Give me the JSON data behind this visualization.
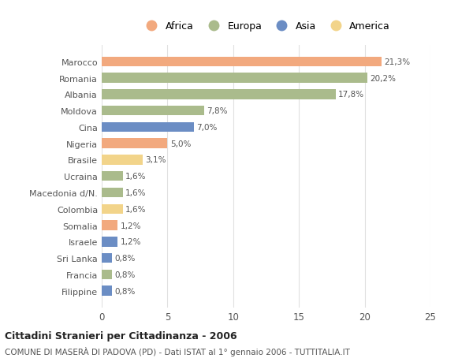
{
  "categories": [
    "Marocco",
    "Romania",
    "Albania",
    "Moldova",
    "Cina",
    "Nigeria",
    "Brasile",
    "Ucraina",
    "Macedonia d/N.",
    "Colombia",
    "Somalia",
    "Israele",
    "Sri Lanka",
    "Francia",
    "Filippine"
  ],
  "values": [
    21.3,
    20.2,
    17.8,
    7.8,
    7.0,
    5.0,
    3.1,
    1.6,
    1.6,
    1.6,
    1.2,
    1.2,
    0.8,
    0.8,
    0.8
  ],
  "labels": [
    "21,3%",
    "20,2%",
    "17,8%",
    "7,8%",
    "7,0%",
    "5,0%",
    "3,1%",
    "1,6%",
    "1,6%",
    "1,6%",
    "1,2%",
    "1,2%",
    "0,8%",
    "0,8%",
    "0,8%"
  ],
  "continents": [
    "Africa",
    "Europa",
    "Europa",
    "Europa",
    "Asia",
    "Africa",
    "America",
    "Europa",
    "Europa",
    "America",
    "Africa",
    "Asia",
    "Asia",
    "Europa",
    "Asia"
  ],
  "colors": {
    "Africa": "#F2A97E",
    "Europa": "#AABB8C",
    "Asia": "#6B8DC4",
    "America": "#F2D48A"
  },
  "legend_order": [
    "Africa",
    "Europa",
    "Asia",
    "America"
  ],
  "title": "Cittadini Stranieri per Cittadinanza - 2006",
  "subtitle": "COMUNE DI MASERÀ DI PADOVA (PD) - Dati ISTAT al 1° gennaio 2006 - TUTTITALIA.IT",
  "xlim": [
    0,
    25
  ],
  "xticks": [
    0,
    5,
    10,
    15,
    20,
    25
  ],
  "background_color": "#ffffff",
  "bar_height": 0.6,
  "grid_color": "#e0e0e0"
}
